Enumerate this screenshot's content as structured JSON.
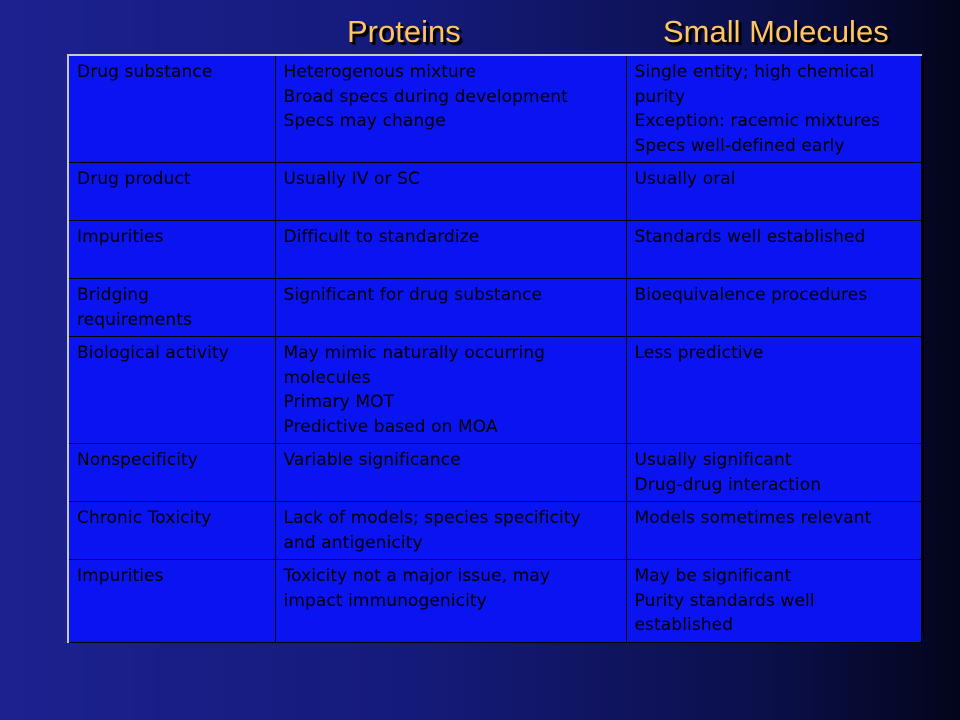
{
  "headers": {
    "proteins": "Proteins",
    "small_molecules": "Small Molecules"
  },
  "rows": [
    {
      "attribute": [
        "Drug substance"
      ],
      "proteins": [
        "Heterogenous mixture",
        "Broad specs during development",
        "Specs may change"
      ],
      "small_molecules": [
        "Single entity; high chemical",
        "purity",
        "Exception: racemic mixtures",
        "Specs well-defined early"
      ]
    },
    {
      "attribute": [
        "Drug product"
      ],
      "proteins": [
        "Usually IV or SC"
      ],
      "small_molecules": [
        "Usually oral"
      ]
    },
    {
      "attribute": [
        "Impurities"
      ],
      "proteins": [
        "Difficult to standardize"
      ],
      "small_molecules": [
        "Standards well established"
      ]
    },
    {
      "attribute": [
        "Bridging",
        "requirements"
      ],
      "proteins": [
        "Significant for drug substance"
      ],
      "small_molecules": [
        "Bioequivalence procedures"
      ]
    },
    {
      "attribute": [
        "Biological activity"
      ],
      "proteins": [
        "May mimic naturally occurring",
        "molecules",
        "Primary MOT",
        "Predictive based on MOA"
      ],
      "small_molecules": [
        "Less predictive"
      ]
    },
    {
      "attribute": [
        "Nonspecificity"
      ],
      "proteins": [
        "Variable significance"
      ],
      "small_molecules": [
        "Usually significant",
        "Drug-drug interaction"
      ]
    },
    {
      "attribute": [
        "Chronic Toxicity"
      ],
      "proteins": [
        "Lack of models; species specificity",
        "and antigenicity"
      ],
      "small_molecules": [
        "Models sometimes relevant"
      ]
    },
    {
      "attribute": [
        "Impurities"
      ],
      "proteins": [
        "Toxicity not a major issue, may",
        "impact immunogenicity"
      ],
      "small_molecules": [
        "May be significant",
        "Purity standards well",
        "established"
      ]
    }
  ],
  "colors": {
    "background": "#141a78",
    "table_fill": "#0a14f0",
    "header_text": "#ffc466",
    "cell_text": "#000000"
  }
}
